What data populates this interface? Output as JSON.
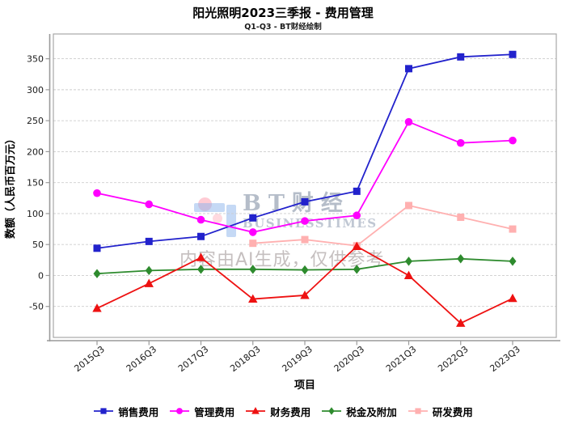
{
  "title": "阳光照明2023三季报 - 费用管理",
  "subtitle": "Q1-Q3 - BT财经绘制",
  "watermark": {
    "logo_text": "BT财经",
    "logo_subtext": "BUSINESSTIMES",
    "ai_notice": "内容由AI生成，仅供参考"
  },
  "chart_data": {
    "type": "line",
    "title": "阳光照明2023三季报 - 费用管理",
    "subtitle": "Q1-Q3 - BT财经绘制",
    "xlabel": "项目",
    "ylabel": "数额（人民币百万元）",
    "categories": [
      "2015Q3",
      "2016Q3",
      "2017Q3",
      "2018Q3",
      "2019Q3",
      "2020Q3",
      "2021Q3",
      "2022Q3",
      "2023Q3"
    ],
    "series": [
      {
        "key": "sales-expense",
        "name": "销售费用",
        "marker": "square",
        "color": "#2222cc",
        "values": [
          44,
          55,
          63,
          93,
          119,
          136,
          334,
          353,
          357
        ]
      },
      {
        "key": "admin-expense",
        "name": "管理费用",
        "marker": "circle",
        "color": "#ff00ff",
        "values": [
          133,
          115,
          90,
          70,
          88,
          97,
          248,
          214,
          218
        ]
      },
      {
        "key": "finance-expense",
        "name": "财务费用",
        "marker": "triangle-up",
        "color": "#ee1111",
        "values": [
          -53,
          -13,
          29,
          -38,
          -32,
          47,
          0,
          -77,
          -37
        ]
      },
      {
        "key": "tax-and-surcharges",
        "name": "税金及附加",
        "marker": "diamond",
        "color": "#2e8b2e",
        "values": [
          3,
          8,
          10,
          10,
          9,
          10,
          23,
          27,
          23
        ]
      },
      {
        "key": "rd-expense",
        "name": "研发费用",
        "marker": "square",
        "color": "#ffb0b0",
        "values": [
          null,
          null,
          null,
          52,
          58,
          48,
          113,
          94,
          75
        ]
      }
    ],
    "yticks": [
      -50,
      0,
      50,
      100,
      150,
      200,
      250,
      300,
      350
    ],
    "ylim": [
      -100,
      390
    ],
    "grid": true,
    "grid_style": "dashed",
    "legend_position": "bottom"
  }
}
